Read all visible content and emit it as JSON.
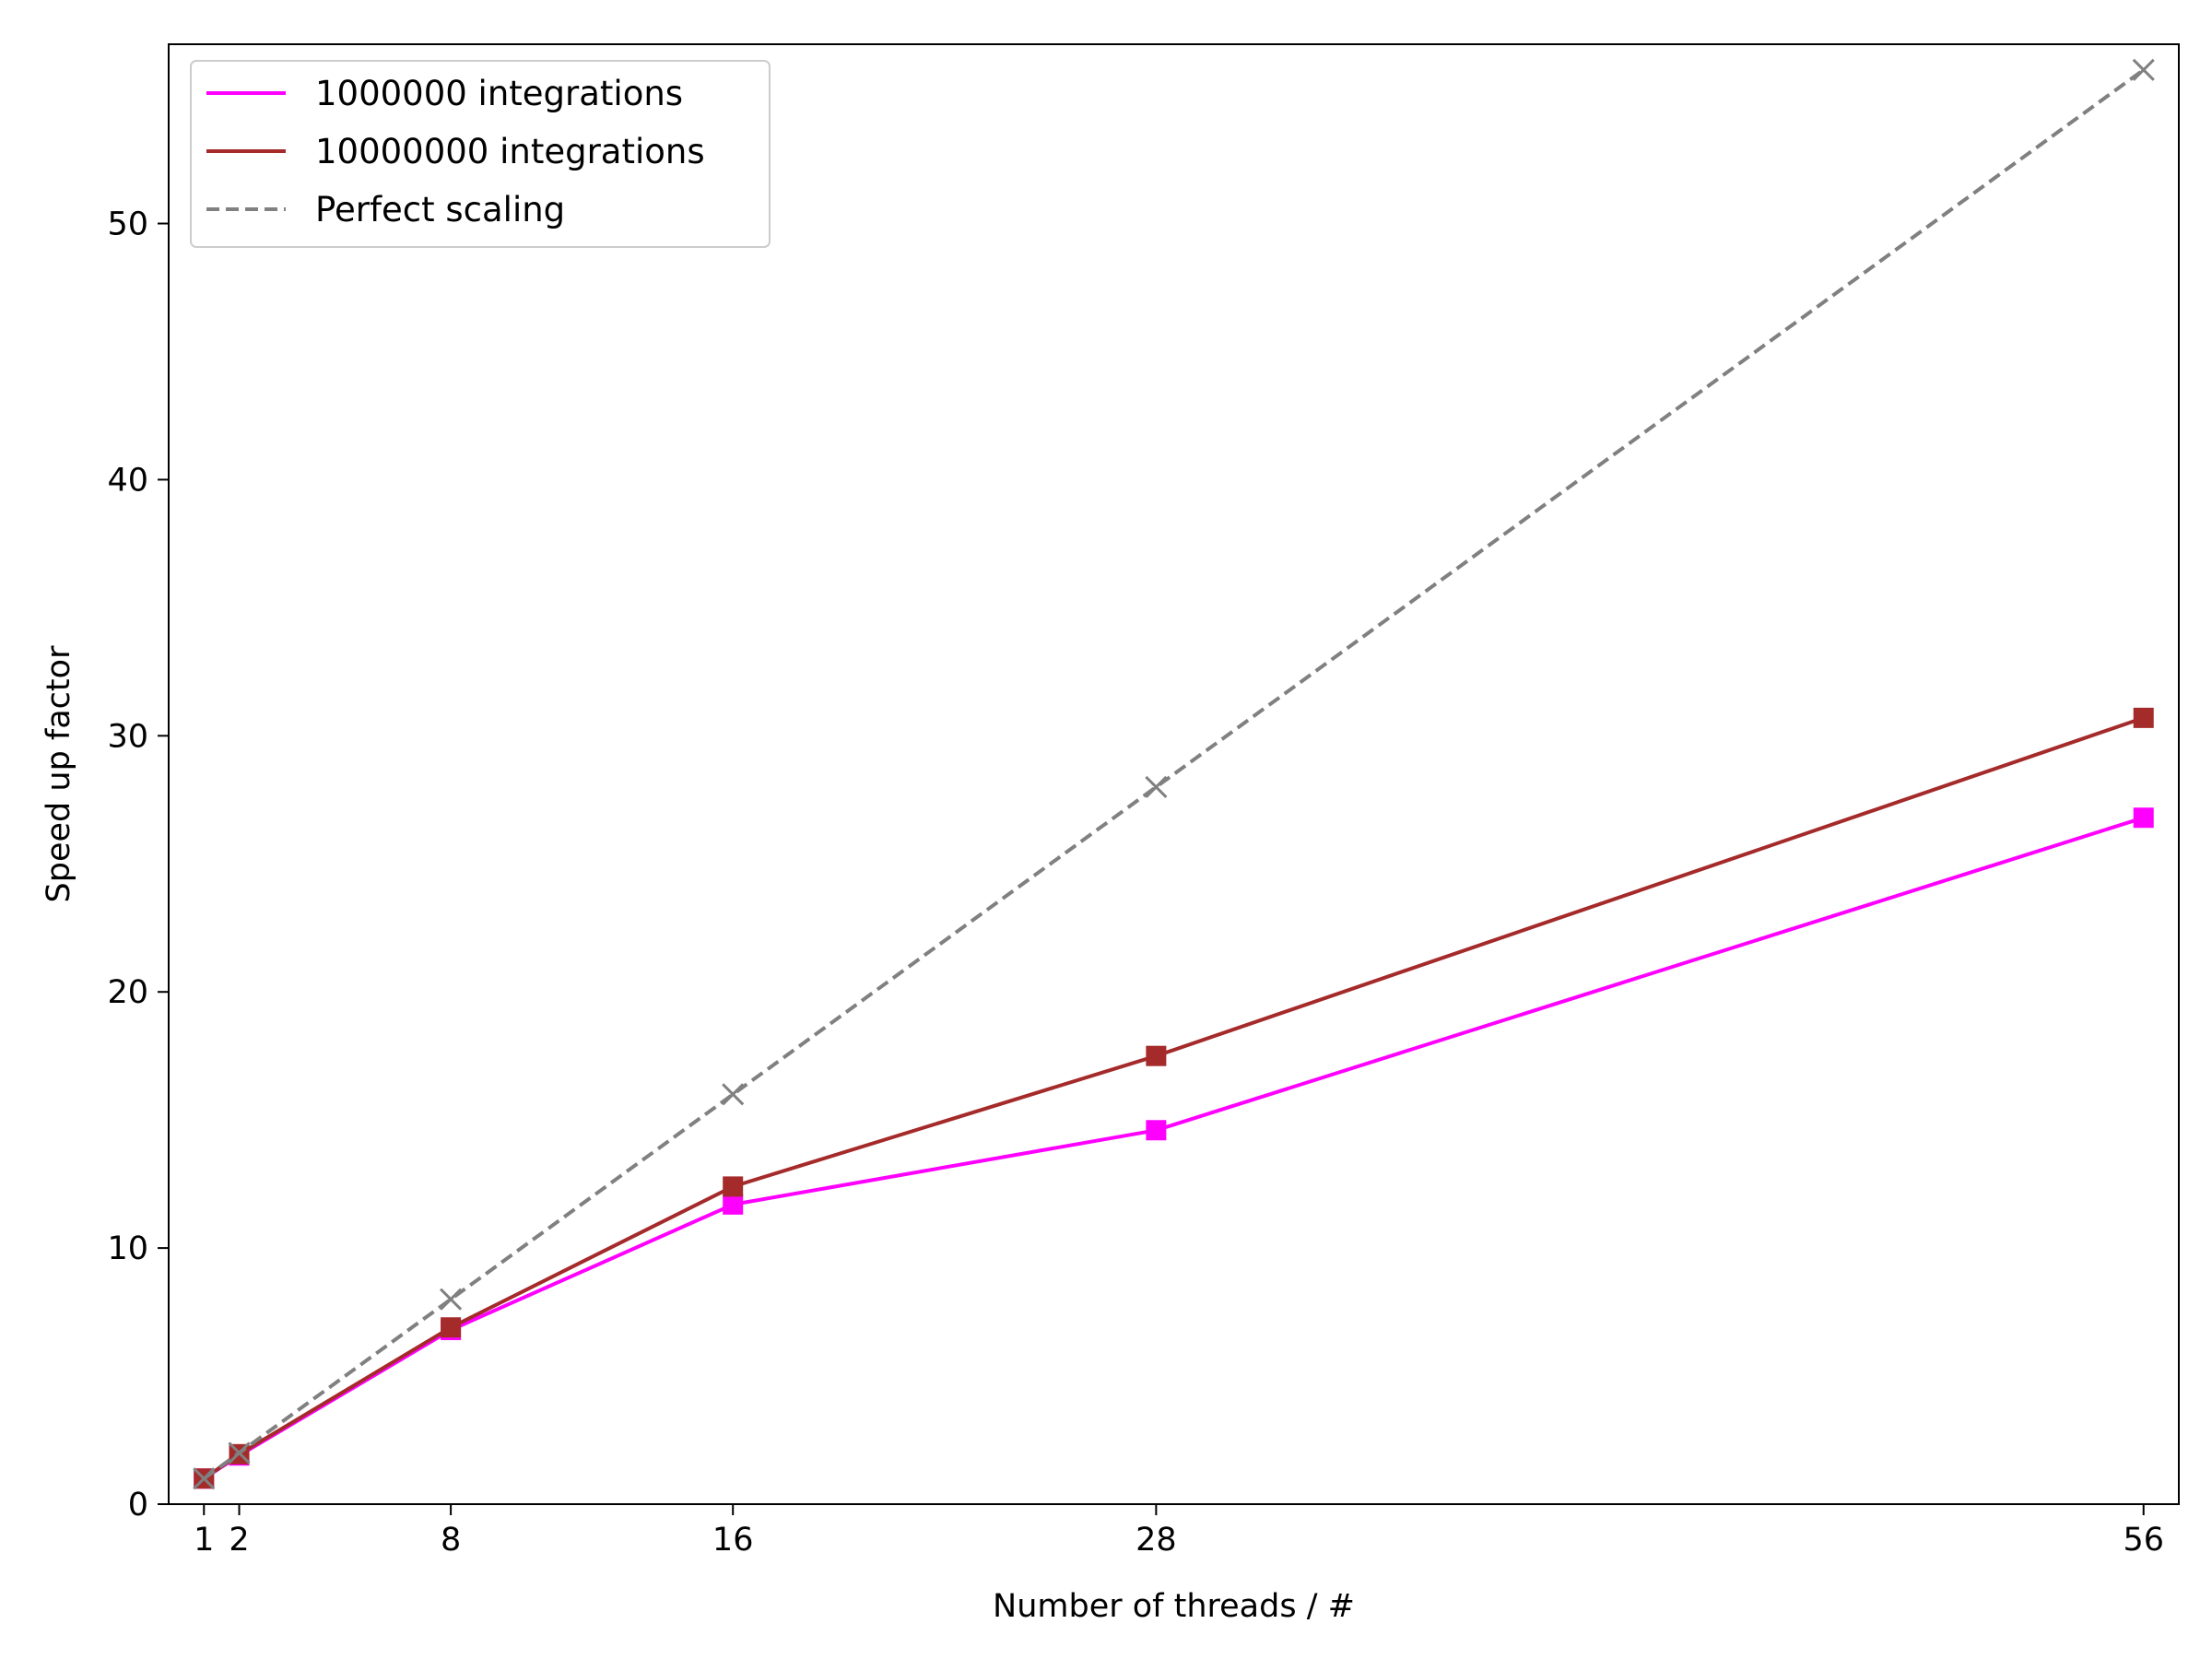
{
  "chart_data": {
    "type": "line",
    "xlabel": "Number of threads / #",
    "ylabel": "Speed up factor",
    "x": [
      1,
      2,
      8,
      16,
      28,
      56
    ],
    "xticks": [
      1,
      2,
      8,
      16,
      28,
      56
    ],
    "xlim": [
      0,
      57
    ],
    "yticks": [
      0,
      10,
      20,
      30,
      40,
      50
    ],
    "ylim": [
      0,
      57
    ],
    "grid": false,
    "legend_position": "top-left",
    "series": [
      {
        "name": "1000000 integrations",
        "values": [
          1,
          1.9,
          6.8,
          11.7,
          14.6,
          26.8
        ],
        "color": "#ff00ff",
        "line_style": "solid",
        "marker": "square"
      },
      {
        "name": "10000000 integrations",
        "values": [
          1,
          1.95,
          6.9,
          12.4,
          17.5,
          30.7
        ],
        "color": "#a52a2a",
        "line_style": "solid",
        "marker": "square"
      },
      {
        "name": "Perfect scaling",
        "values": [
          1,
          2,
          8,
          16,
          28,
          56
        ],
        "color": "#808080",
        "line_style": "dashed",
        "marker": "x"
      }
    ]
  }
}
